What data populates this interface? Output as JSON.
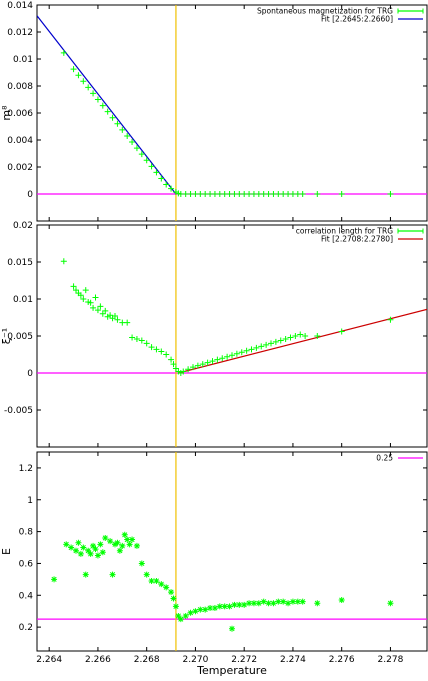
{
  "chart_data": [
    {
      "type": "scatter",
      "ylabel": "m⁸",
      "xlim": [
        2.2635,
        2.2795
      ],
      "ylim": [
        -0.002,
        0.014
      ],
      "yticks": [
        "0",
        "0.002",
        "0.004",
        "0.006",
        "0.008",
        "0.01",
        "0.012",
        "0.014"
      ],
      "grid": false,
      "legend_position": "top-right",
      "series": [
        {
          "name": "Spontaneous magnetization for TRG",
          "color": "#00ff00",
          "points": [
            [
              2.2646,
              0.01045
            ],
            [
              2.265,
              0.00925
            ],
            [
              2.2652,
              0.0088
            ],
            [
              2.2654,
              0.00835
            ],
            [
              2.2656,
              0.0079
            ],
            [
              2.2658,
              0.00745
            ],
            [
              2.266,
              0.007
            ],
            [
              2.2662,
              0.00655
            ],
            [
              2.2664,
              0.0061
            ],
            [
              2.2666,
              0.00565
            ],
            [
              2.2668,
              0.0052
            ],
            [
              2.267,
              0.00475
            ],
            [
              2.2672,
              0.0043
            ],
            [
              2.2674,
              0.00385
            ],
            [
              2.2676,
              0.0034
            ],
            [
              2.2678,
              0.00295
            ],
            [
              2.268,
              0.0025
            ],
            [
              2.2682,
              0.00205
            ],
            [
              2.2684,
              0.0016
            ],
            [
              2.2686,
              0.00115
            ],
            [
              2.2688,
              0.0007
            ],
            [
              2.269,
              0.0004
            ],
            [
              2.2692,
              0.00015
            ],
            [
              2.2693,
              5e-05
            ],
            [
              2.2694,
              0.0
            ],
            [
              2.2696,
              0.0
            ],
            [
              2.2698,
              0.0
            ],
            [
              2.27,
              0.0
            ],
            [
              2.2702,
              0.0
            ],
            [
              2.2704,
              0.0
            ],
            [
              2.2706,
              0.0
            ],
            [
              2.2708,
              0.0
            ],
            [
              2.271,
              0.0
            ],
            [
              2.2712,
              0.0
            ],
            [
              2.2714,
              0.0
            ],
            [
              2.2716,
              0.0
            ],
            [
              2.2718,
              0.0
            ],
            [
              2.272,
              0.0
            ],
            [
              2.2722,
              0.0
            ],
            [
              2.2724,
              0.0
            ],
            [
              2.2726,
              0.0
            ],
            [
              2.2728,
              0.0
            ],
            [
              2.273,
              0.0
            ],
            [
              2.2732,
              0.0
            ],
            [
              2.2734,
              0.0
            ],
            [
              2.2736,
              0.0
            ],
            [
              2.2738,
              0.0
            ],
            [
              2.274,
              0.0
            ],
            [
              2.2742,
              0.0
            ],
            [
              2.2744,
              0.0
            ],
            [
              2.275,
              0.0
            ],
            [
              2.276,
              0.0
            ],
            [
              2.278,
              0.0
            ]
          ]
        },
        {
          "name": "Fit [2.2645:2.2660]",
          "color": "#0000cc",
          "line": [
            [
              2.2635,
              0.0132
            ],
            [
              2.2692,
              0.0
            ]
          ]
        },
        {
          "name": "",
          "color": "#ff00ff",
          "line": [
            [
              2.2635,
              0.0
            ],
            [
              2.2795,
              0.0
            ]
          ]
        }
      ]
    },
    {
      "type": "scatter",
      "ylabel": "ξ⁻¹",
      "xlim": [
        2.2635,
        2.2795
      ],
      "ylim": [
        -0.01,
        0.02
      ],
      "yticks": [
        "-0.005",
        "0",
        "0.005",
        "0.01",
        "0.015",
        "0.02"
      ],
      "grid": false,
      "legend_position": "top-right",
      "series": [
        {
          "name": "correlation length for TRG",
          "color": "#00ff00",
          "points": [
            [
              2.2646,
              0.0151
            ],
            [
              2.265,
              0.0117
            ],
            [
              2.2651,
              0.0112
            ],
            [
              2.2652,
              0.0108
            ],
            [
              2.2653,
              0.0105
            ],
            [
              2.2654,
              0.01
            ],
            [
              2.2655,
              0.0112
            ],
            [
              2.2656,
              0.0096
            ],
            [
              2.2657,
              0.0095
            ],
            [
              2.2658,
              0.0088
            ],
            [
              2.2659,
              0.0102
            ],
            [
              2.266,
              0.0085
            ],
            [
              2.2661,
              0.009
            ],
            [
              2.2662,
              0.008
            ],
            [
              2.2663,
              0.0084
            ],
            [
              2.2664,
              0.0076
            ],
            [
              2.2665,
              0.0078
            ],
            [
              2.2666,
              0.0074
            ],
            [
              2.2667,
              0.0077
            ],
            [
              2.2668,
              0.0072
            ],
            [
              2.267,
              0.0068
            ],
            [
              2.2672,
              0.0068
            ],
            [
              2.2674,
              0.0048
            ],
            [
              2.2676,
              0.0046
            ],
            [
              2.2678,
              0.0044
            ],
            [
              2.268,
              0.004
            ],
            [
              2.2682,
              0.0035
            ],
            [
              2.2684,
              0.0032
            ],
            [
              2.2686,
              0.0029
            ],
            [
              2.2688,
              0.0025
            ],
            [
              2.269,
              0.0018
            ],
            [
              2.2691,
              0.0012
            ],
            [
              2.2692,
              0.0006
            ],
            [
              2.2693,
              0.0002
            ],
            [
              2.2694,
              0.0
            ],
            [
              2.2695,
              0.0002
            ],
            [
              2.2697,
              0.0005
            ],
            [
              2.2699,
              0.0008
            ],
            [
              2.2701,
              0.001
            ],
            [
              2.2703,
              0.0012
            ],
            [
              2.2705,
              0.0014
            ],
            [
              2.2707,
              0.0016
            ],
            [
              2.2709,
              0.0018
            ],
            [
              2.2711,
              0.002
            ],
            [
              2.2713,
              0.0022
            ],
            [
              2.2715,
              0.0024
            ],
            [
              2.2717,
              0.0026
            ],
            [
              2.2719,
              0.0028
            ],
            [
              2.2721,
              0.003
            ],
            [
              2.2723,
              0.0032
            ],
            [
              2.2725,
              0.0034
            ],
            [
              2.2727,
              0.0036
            ],
            [
              2.2729,
              0.0038
            ],
            [
              2.2731,
              0.004
            ],
            [
              2.2733,
              0.0042
            ],
            [
              2.2735,
              0.0044
            ],
            [
              2.2737,
              0.0046
            ],
            [
              2.2739,
              0.0048
            ],
            [
              2.2741,
              0.005
            ],
            [
              2.2743,
              0.0052
            ],
            [
              2.2745,
              0.005
            ],
            [
              2.275,
              0.005
            ],
            [
              2.276,
              0.0056
            ],
            [
              2.278,
              0.0072
            ]
          ]
        },
        {
          "name": "Fit [2.2708:2.2780]",
          "color": "#cc0000",
          "line": [
            [
              2.2693,
              0.0
            ],
            [
              2.2795,
              0.0086
            ]
          ]
        },
        {
          "name": "",
          "color": "#ff00ff",
          "line": [
            [
              2.2635,
              0.0
            ],
            [
              2.2795,
              0.0
            ]
          ]
        }
      ]
    },
    {
      "type": "scatter",
      "ylabel": "E",
      "xlabel": "Temperature",
      "xlim": [
        2.2635,
        2.2795
      ],
      "ylim": [
        0.05,
        1.3
      ],
      "yticks": [
        "0.2",
        "0.4",
        "0.6",
        "0.8",
        "1",
        "1.2"
      ],
      "xticks": [
        "2.264",
        "2.266",
        "2.268",
        "2.270",
        "2.272",
        "2.274",
        "2.276",
        "2.278"
      ],
      "grid": false,
      "legend_position": "top-right",
      "series": [
        {
          "name": "",
          "color": "#00ff00",
          "points": [
            [
              2.2642,
              0.5
            ],
            [
              2.2647,
              0.72
            ],
            [
              2.2649,
              0.7
            ],
            [
              2.2651,
              0.68
            ],
            [
              2.2652,
              0.73
            ],
            [
              2.2653,
              0.66
            ],
            [
              2.2654,
              0.7
            ],
            [
              2.2655,
              0.53
            ],
            [
              2.2656,
              0.68
            ],
            [
              2.2657,
              0.66
            ],
            [
              2.2658,
              0.71
            ],
            [
              2.2659,
              0.69
            ],
            [
              2.266,
              0.65
            ],
            [
              2.2661,
              0.72
            ],
            [
              2.2662,
              0.67
            ],
            [
              2.2663,
              0.76
            ],
            [
              2.2665,
              0.74
            ],
            [
              2.2666,
              0.53
            ],
            [
              2.2667,
              0.72
            ],
            [
              2.2668,
              0.73
            ],
            [
              2.2669,
              0.68
            ],
            [
              2.267,
              0.71
            ],
            [
              2.2671,
              0.78
            ],
            [
              2.2672,
              0.75
            ],
            [
              2.2673,
              0.72
            ],
            [
              2.2674,
              0.75
            ],
            [
              2.2676,
              0.71
            ],
            [
              2.2678,
              0.6
            ],
            [
              2.268,
              0.53
            ],
            [
              2.2682,
              0.49
            ],
            [
              2.2684,
              0.49
            ],
            [
              2.2686,
              0.47
            ],
            [
              2.2688,
              0.45
            ],
            [
              2.269,
              0.42
            ],
            [
              2.2691,
              0.38
            ],
            [
              2.2692,
              0.33
            ],
            [
              2.2693,
              0.27
            ],
            [
              2.2694,
              0.25
            ],
            [
              2.2696,
              0.27
            ],
            [
              2.2698,
              0.29
            ],
            [
              2.27,
              0.3
            ],
            [
              2.2702,
              0.31
            ],
            [
              2.2704,
              0.31
            ],
            [
              2.2706,
              0.32
            ],
            [
              2.2708,
              0.32
            ],
            [
              2.271,
              0.33
            ],
            [
              2.2712,
              0.33
            ],
            [
              2.2714,
              0.33
            ],
            [
              2.2715,
              0.19
            ],
            [
              2.2716,
              0.34
            ],
            [
              2.2718,
              0.34
            ],
            [
              2.272,
              0.34
            ],
            [
              2.2722,
              0.35
            ],
            [
              2.2724,
              0.35
            ],
            [
              2.2726,
              0.35
            ],
            [
              2.2728,
              0.36
            ],
            [
              2.273,
              0.35
            ],
            [
              2.2732,
              0.35
            ],
            [
              2.2734,
              0.36
            ],
            [
              2.2736,
              0.36
            ],
            [
              2.2738,
              0.35
            ],
            [
              2.274,
              0.36
            ],
            [
              2.2742,
              0.36
            ],
            [
              2.2744,
              0.36
            ],
            [
              2.275,
              0.35
            ],
            [
              2.276,
              0.37
            ],
            [
              2.278,
              0.35
            ]
          ]
        },
        {
          "name": "0.25",
          "color": "#ff00ff",
          "line": [
            [
              2.2635,
              0.25
            ],
            [
              2.2795,
              0.25
            ]
          ]
        }
      ]
    }
  ],
  "vline": {
    "x": 2.2692,
    "color": "#f0c000"
  }
}
